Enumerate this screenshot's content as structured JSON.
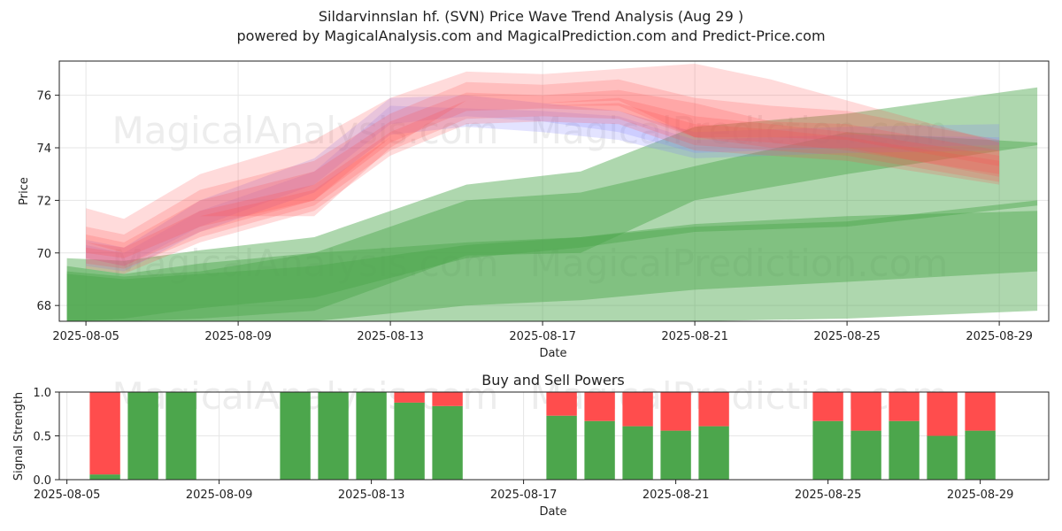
{
  "header": {
    "title": "Sildarvinnslan hf. (SVN) Price Wave Trend Analysis (Aug 29 )",
    "subtitle": "powered by MagicalAnalysis.com and MagicalPrediction.com and Predict-Price.com"
  },
  "watermarks": [
    "MagicalAnalysis.com",
    "MagicalPrediction.com"
  ],
  "colors": {
    "red": "#ff4d4d",
    "green": "#4ca64c",
    "blue": "#8080ff"
  },
  "chart_data": [
    {
      "type": "area",
      "title": "",
      "xlabel": "Date",
      "ylabel": "Price",
      "xlim_days": [
        4.3,
        30.3
      ],
      "ylim": [
        67.4,
        77.3
      ],
      "yticks": [
        68,
        70,
        72,
        74,
        76
      ],
      "xticks": [
        {
          "day": 5,
          "label": "2025-08-05"
        },
        {
          "day": 9,
          "label": "2025-08-09"
        },
        {
          "day": 13,
          "label": "2025-08-13"
        },
        {
          "day": 17,
          "label": "2025-08-17"
        },
        {
          "day": 21,
          "label": "2025-08-21"
        },
        {
          "day": 25,
          "label": "2025-08-25"
        },
        {
          "day": 29,
          "label": "2025-08-29"
        }
      ],
      "series": [
        {
          "name": "green band 1",
          "color": "green",
          "x": [
            4.5,
            6,
            8,
            11,
            15,
            18,
            21,
            25,
            30
          ],
          "upper": [
            69.8,
            69.7,
            70.1,
            70.6,
            72.6,
            73.1,
            74.8,
            75.3,
            76.3
          ],
          "lower": [
            67.3,
            67.3,
            67.3,
            67.3,
            68.0,
            68.2,
            68.6,
            68.9,
            69.3
          ]
        },
        {
          "name": "green band 2",
          "color": "green",
          "x": [
            4.5,
            6,
            8,
            11,
            15,
            18,
            21,
            25,
            30
          ],
          "upper": [
            69.5,
            69.2,
            69.6,
            70.0,
            70.4,
            70.6,
            71.1,
            71.4,
            71.6
          ],
          "lower": [
            67.3,
            67.3,
            67.3,
            67.3,
            67.3,
            67.3,
            67.3,
            67.5,
            67.8
          ]
        },
        {
          "name": "green band 3",
          "color": "green",
          "x": [
            4.5,
            6,
            8,
            11,
            15,
            18,
            21,
            25,
            30
          ],
          "upper": [
            69.3,
            69.1,
            69.3,
            70.0,
            72.0,
            72.3,
            73.3,
            74.6,
            74.2
          ],
          "lower": [
            67.3,
            67.3,
            67.5,
            67.8,
            69.9,
            70.0,
            72.0,
            73.0,
            74.1
          ]
        },
        {
          "name": "green band 4",
          "color": "green",
          "x": [
            4.5,
            6,
            8,
            11,
            15,
            18,
            21,
            25,
            30
          ],
          "upper": [
            69.2,
            69.0,
            69.2,
            69.5,
            70.3,
            70.6,
            71.0,
            71.2,
            72.0
          ],
          "lower": [
            67.3,
            67.5,
            67.9,
            68.3,
            69.8,
            70.2,
            70.8,
            71.0,
            71.8
          ]
        },
        {
          "name": "blue band 1",
          "color": "blue",
          "x": [
            5,
            6,
            8,
            11,
            13,
            15,
            17,
            19,
            21,
            25,
            29
          ],
          "upper": [
            70.5,
            70.2,
            72.0,
            73.6,
            75.9,
            76.0,
            75.7,
            75.4,
            74.6,
            74.8,
            74.9
          ],
          "lower": [
            69.8,
            69.5,
            71.0,
            72.6,
            74.9,
            75.2,
            75.0,
            74.6,
            73.8,
            74.0,
            74.1
          ]
        },
        {
          "name": "blue band 2",
          "color": "blue",
          "x": [
            5,
            6,
            8,
            11,
            13,
            15,
            17,
            19,
            21,
            25,
            29
          ],
          "upper": [
            70.3,
            70.0,
            71.6,
            73.1,
            75.6,
            75.5,
            75.4,
            75.2,
            74.3,
            74.5,
            74.4
          ],
          "lower": [
            69.5,
            69.3,
            70.8,
            72.3,
            74.5,
            74.8,
            74.6,
            74.3,
            73.6,
            73.8,
            73.9
          ]
        },
        {
          "name": "red band 1",
          "color": "red",
          "x": [
            5,
            6,
            8,
            11,
            13,
            15,
            17,
            19,
            21,
            23,
            25,
            29
          ],
          "upper": [
            71.7,
            71.3,
            73.0,
            74.3,
            75.9,
            76.9,
            76.8,
            77.0,
            77.2,
            76.6,
            75.8,
            74.2
          ],
          "lower": [
            70.4,
            70.0,
            71.4,
            71.4,
            74.0,
            75.8,
            75.7,
            75.8,
            74.4,
            74.2,
            73.9,
            73.0
          ]
        },
        {
          "name": "red band 2",
          "color": "red",
          "x": [
            5,
            6,
            8,
            11,
            13,
            15,
            17,
            19,
            21,
            23,
            25,
            29
          ],
          "upper": [
            71.0,
            70.7,
            72.4,
            73.5,
            75.3,
            76.5,
            76.4,
            76.6,
            75.9,
            75.6,
            75.4,
            74.3
          ],
          "lower": [
            70.0,
            69.8,
            71.0,
            72.0,
            74.4,
            75.6,
            75.6,
            75.6,
            74.4,
            74.4,
            74.3,
            73.3
          ]
        },
        {
          "name": "red band 3",
          "color": "red",
          "x": [
            5,
            6,
            8,
            11,
            13,
            15,
            17,
            19,
            21,
            23,
            25,
            29
          ],
          "upper": [
            70.7,
            70.4,
            72.0,
            73.1,
            75.0,
            76.1,
            76.0,
            76.2,
            75.7,
            75.0,
            74.9,
            73.9
          ],
          "lower": [
            69.8,
            69.5,
            70.8,
            72.0,
            74.2,
            75.4,
            75.5,
            75.4,
            74.4,
            74.0,
            74.0,
            72.9
          ]
        },
        {
          "name": "red band 4",
          "color": "red",
          "x": [
            5,
            6,
            8,
            11,
            13,
            15,
            17,
            19,
            21,
            23,
            25,
            29
          ],
          "upper": [
            70.4,
            70.2,
            71.6,
            72.6,
            74.6,
            75.8,
            75.7,
            75.9,
            75.2,
            74.9,
            74.6,
            73.7
          ],
          "lower": [
            69.6,
            69.4,
            70.6,
            71.8,
            73.9,
            75.1,
            75.2,
            75.1,
            74.1,
            73.9,
            73.7,
            72.7
          ]
        },
        {
          "name": "red band 5",
          "color": "red",
          "x": [
            5,
            6,
            8,
            11,
            13,
            15,
            17,
            19,
            21,
            23,
            25,
            29
          ],
          "upper": [
            70.2,
            70.0,
            71.4,
            72.4,
            74.4,
            75.6,
            75.6,
            75.7,
            74.9,
            74.7,
            74.4,
            73.5
          ],
          "lower": [
            69.4,
            69.2,
            70.4,
            71.6,
            73.7,
            74.9,
            75.0,
            74.9,
            73.9,
            73.7,
            73.5,
            72.6
          ]
        }
      ]
    },
    {
      "type": "bar",
      "title": "Buy and Sell Powers",
      "xlabel": "Date",
      "ylabel": "Signal Strength",
      "xlim_days": [
        4.3,
        30.3
      ],
      "ylim": [
        0,
        1
      ],
      "yticks": [
        "0.0",
        "0.5",
        "1.0"
      ],
      "xticks": [
        {
          "day": 5,
          "label": "2025-08-05"
        },
        {
          "day": 9,
          "label": "2025-08-09"
        },
        {
          "day": 13,
          "label": "2025-08-13"
        },
        {
          "day": 17,
          "label": "2025-08-17"
        },
        {
          "day": 21,
          "label": "2025-08-21"
        },
        {
          "day": 25,
          "label": "2025-08-25"
        },
        {
          "day": 29,
          "label": "2025-08-29"
        }
      ],
      "days": [
        6,
        7,
        8,
        11,
        12,
        13,
        14,
        15,
        18,
        19,
        20,
        21,
        22,
        25,
        26,
        27,
        28,
        29
      ],
      "buy": [
        0.06,
        1.0,
        1.0,
        1.0,
        1.0,
        1.0,
        0.88,
        0.84,
        0.73,
        0.67,
        0.61,
        0.56,
        0.61,
        0.67,
        0.56,
        0.67,
        0.5,
        0.56
      ],
      "sell": [
        0.94,
        0.0,
        0.0,
        0.0,
        0.0,
        0.0,
        0.12,
        0.16,
        0.27,
        0.33,
        0.39,
        0.44,
        0.39,
        0.33,
        0.44,
        0.33,
        0.5,
        0.44
      ]
    }
  ]
}
